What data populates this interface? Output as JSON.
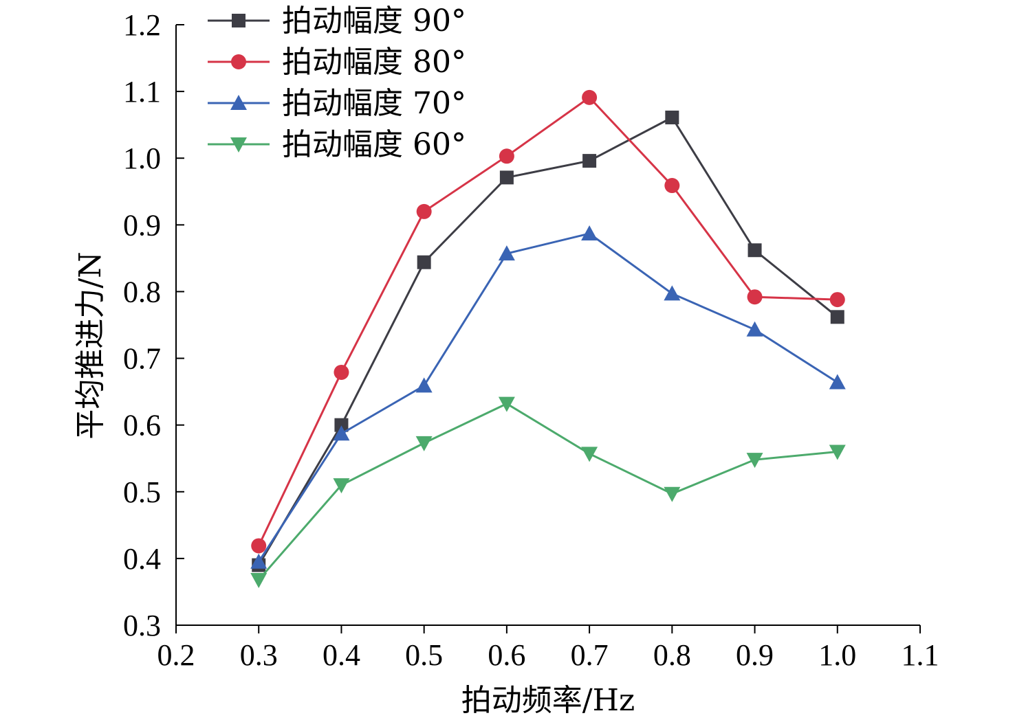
{
  "chart_data": {
    "type": "line",
    "title": "",
    "xlabel": "拍动频率/Hz",
    "ylabel": "平均推进力/N",
    "xlim": [
      0.2,
      1.1
    ],
    "ylim": [
      0.3,
      1.2
    ],
    "xticks": [
      "0.2",
      "0.3",
      "0.4",
      "0.5",
      "0.6",
      "0.7",
      "0.8",
      "0.9",
      "1.0",
      "1.1"
    ],
    "yticks": [
      "0.3",
      "0.4",
      "0.5",
      "0.6",
      "0.7",
      "0.8",
      "0.9",
      "1.0",
      "1.1",
      "1.2"
    ],
    "grid": false,
    "legend_position": "top-left",
    "x": [
      0.3,
      0.4,
      0.5,
      0.6,
      0.7,
      0.8,
      0.9,
      1.0
    ],
    "series": [
      {
        "name": "拍动幅度 90°",
        "color": "#3d3d45",
        "marker": "square",
        "values": [
          0.39,
          0.6,
          0.844,
          0.971,
          0.996,
          1.061,
          0.862,
          0.762
        ]
      },
      {
        "name": "拍动幅度 80°",
        "color": "#d63447",
        "marker": "circle",
        "values": [
          0.419,
          0.679,
          0.92,
          1.003,
          1.091,
          0.959,
          0.792,
          0.788
        ]
      },
      {
        "name": "拍动幅度 70°",
        "color": "#3a64b4",
        "marker": "triangle-up",
        "values": [
          0.395,
          0.587,
          0.659,
          0.857,
          0.887,
          0.797,
          0.743,
          0.664
        ]
      },
      {
        "name": "拍动幅度 60°",
        "color": "#4caa6c",
        "marker": "triangle-down",
        "values": [
          0.368,
          0.51,
          0.573,
          0.632,
          0.557,
          0.497,
          0.548,
          0.56
        ]
      }
    ]
  }
}
